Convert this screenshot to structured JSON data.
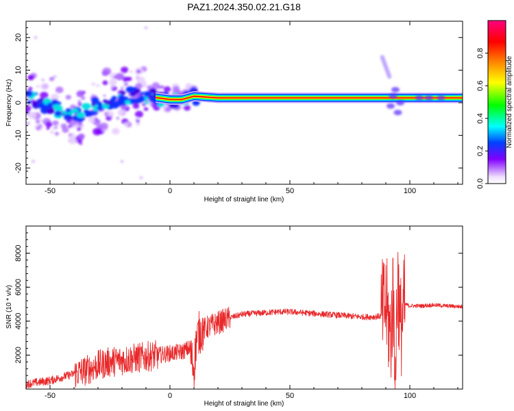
{
  "figure_title": "PAZ1.2024.350.02.21.G18",
  "chart_data": [
    {
      "type": "heatmap",
      "xlabel": "Height of straight line (km)",
      "ylabel": "Frequency (Hz)",
      "xlim": [
        -60,
        122
      ],
      "ylim": [
        -25,
        25
      ],
      "xticks": [
        -50,
        0,
        50,
        100
      ],
      "yticks": [
        -20,
        -10,
        0,
        10,
        20
      ],
      "colorbar": {
        "label": "Normalized spectral amplitude",
        "range": [
          0,
          1
        ],
        "ticks": [
          0.0,
          0.2,
          0.4,
          0.6,
          0.8
        ],
        "tick_labels": [
          "0.0",
          "0.2",
          "0.4",
          "0.6",
          "0.8"
        ],
        "colors": [
          "#f0e0ff",
          "#8000ff",
          "#0040ff",
          "#00ffff",
          "#00ff00",
          "#ffff00",
          "#ff8000",
          "#ff0000",
          "#ff0080"
        ]
      },
      "ridge": {
        "description_points_x": [
          -58,
          -54,
          -50,
          -46,
          -42,
          -38,
          -34,
          -30,
          -26,
          -22,
          -18,
          -14,
          -10,
          -5,
          0,
          5,
          10,
          20,
          30,
          50,
          70,
          88,
          92,
          95,
          100,
          110,
          122
        ],
        "frequency_y": [
          1.5,
          0.5,
          -1.5,
          -2.0,
          -3.5,
          -4.0,
          -2.0,
          -0.5,
          1.0,
          0.0,
          2.0,
          2.5,
          2.0,
          1.5,
          1.0,
          1.0,
          2.0,
          1.5,
          1.5,
          1.5,
          1.5,
          1.5,
          1.5,
          1.5,
          1.5,
          1.5,
          1.5
        ]
      }
    },
    {
      "type": "line",
      "xlabel": "Height of straight line (km)",
      "ylabel": "SNR (10 * v/v)",
      "xlim": [
        -60,
        122
      ],
      "ylim": [
        0,
        9600
      ],
      "xticks": [
        -50,
        0,
        50,
        100
      ],
      "yticks": [
        2000,
        4000,
        6000,
        8000
      ],
      "series_color": "#e8282a",
      "x": [
        -60,
        -55,
        -50,
        -45,
        -40,
        -35,
        -30,
        -25,
        -20,
        -15,
        -10,
        -5,
        0,
        5,
        8,
        10,
        11,
        12,
        15,
        20,
        25,
        30,
        35,
        40,
        45,
        50,
        55,
        60,
        65,
        70,
        75,
        80,
        85,
        88,
        90,
        92,
        93,
        94,
        95,
        96,
        98,
        100,
        105,
        110,
        115,
        122
      ],
      "y": [
        300,
        400,
        500,
        700,
        900,
        1100,
        1400,
        1600,
        1700,
        1800,
        1900,
        2000,
        2100,
        2200,
        2400,
        1200,
        2900,
        3300,
        3600,
        3900,
        4200,
        4400,
        4450,
        4500,
        4550,
        4550,
        4500,
        4450,
        4400,
        4350,
        4300,
        4250,
        4250,
        4300,
        5000,
        3000,
        5500,
        2000,
        6500,
        3500,
        5000,
        4900,
        4900,
        4950,
        4900,
        4850
      ]
    }
  ]
}
